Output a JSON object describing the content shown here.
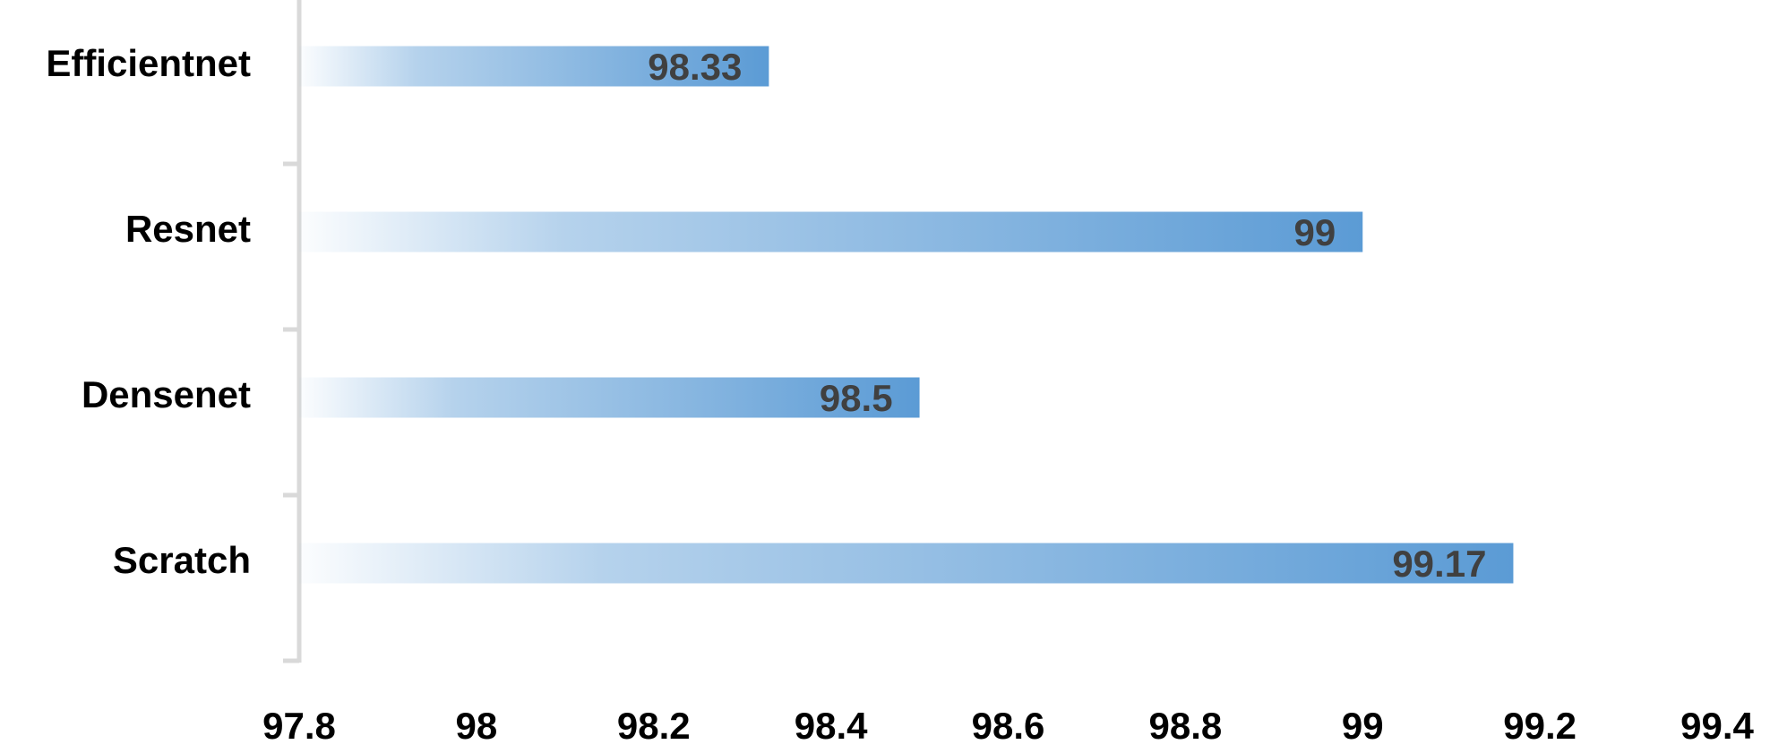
{
  "chart_data": {
    "type": "bar",
    "orientation": "horizontal",
    "categories": [
      "Efficientnet",
      "Resnet",
      "Densenet",
      "Scratch"
    ],
    "values": [
      98.33,
      99,
      98.5,
      99.17
    ],
    "color": "#5b9bd5",
    "xlim": [
      97.8,
      99.4
    ],
    "xticks": [
      97.8,
      98,
      98.2,
      98.4,
      98.6,
      98.8,
      99,
      99.2,
      99.4
    ],
    "grid": false
  }
}
